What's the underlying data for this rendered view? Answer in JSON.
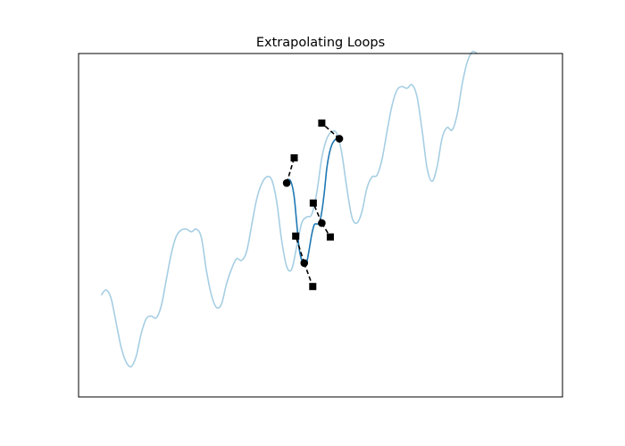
{
  "chart_data": {
    "type": "line",
    "title": "Extrapolating Loops",
    "xlabel": "",
    "ylabel": "",
    "xlim": [
      -0.55,
      9.1
    ],
    "ylim": [
      -0.35,
      3.6
    ],
    "grid": false,
    "axis_ticks": false,
    "background_curve": {
      "color": "#a6cee3",
      "points": [
        [
          -0.1,
          0.82
        ],
        [
          0.0,
          0.88
        ],
        [
          0.1,
          0.78
        ],
        [
          0.2,
          0.5
        ],
        [
          0.3,
          0.22
        ],
        [
          0.4,
          0.05
        ],
        [
          0.5,
          0.0
        ],
        [
          0.6,
          0.12
        ],
        [
          0.7,
          0.38
        ],
        [
          0.8,
          0.55
        ],
        [
          0.9,
          0.58
        ],
        [
          1.0,
          0.56
        ],
        [
          1.1,
          0.7
        ],
        [
          1.2,
          1.0
        ],
        [
          1.3,
          1.3
        ],
        [
          1.4,
          1.5
        ],
        [
          1.5,
          1.57
        ],
        [
          1.6,
          1.58
        ],
        [
          1.7,
          1.55
        ],
        [
          1.8,
          1.58
        ],
        [
          1.9,
          1.48
        ],
        [
          2.0,
          1.1
        ],
        [
          2.1,
          0.82
        ],
        [
          2.2,
          0.68
        ],
        [
          2.3,
          0.72
        ],
        [
          2.4,
          0.95
        ],
        [
          2.5,
          1.12
        ],
        [
          2.6,
          1.24
        ],
        [
          2.7,
          1.22
        ],
        [
          2.8,
          1.32
        ],
        [
          2.9,
          1.62
        ],
        [
          3.0,
          1.92
        ],
        [
          3.1,
          2.1
        ],
        [
          3.2,
          2.18
        ],
        [
          3.3,
          2.15
        ],
        [
          3.4,
          1.9
        ],
        [
          3.5,
          1.45
        ],
        [
          3.6,
          1.15
        ],
        [
          3.7,
          1.12
        ],
        [
          3.8,
          1.38
        ],
        [
          3.9,
          1.65
        ],
        [
          4.0,
          1.72
        ],
        [
          4.1,
          1.75
        ],
        [
          4.2,
          2.0
        ],
        [
          4.3,
          2.4
        ],
        [
          4.4,
          2.62
        ],
        [
          4.5,
          2.7
        ],
        [
          4.6,
          2.68
        ],
        [
          4.7,
          2.45
        ],
        [
          4.8,
          2.05
        ],
        [
          4.9,
          1.72
        ],
        [
          5.0,
          1.65
        ],
        [
          5.1,
          1.78
        ],
        [
          5.2,
          2.05
        ],
        [
          5.3,
          2.18
        ],
        [
          5.4,
          2.2
        ],
        [
          5.5,
          2.38
        ],
        [
          5.6,
          2.7
        ],
        [
          5.7,
          3.0
        ],
        [
          5.8,
          3.18
        ],
        [
          5.9,
          3.22
        ],
        [
          6.0,
          3.2
        ],
        [
          6.1,
          3.24
        ],
        [
          6.2,
          3.1
        ],
        [
          6.3,
          2.72
        ],
        [
          6.4,
          2.28
        ],
        [
          6.5,
          2.13
        ],
        [
          6.6,
          2.3
        ],
        [
          6.7,
          2.63
        ],
        [
          6.8,
          2.75
        ],
        [
          6.9,
          2.72
        ],
        [
          7.0,
          2.9
        ],
        [
          7.1,
          3.25
        ],
        [
          7.2,
          3.5
        ],
        [
          7.3,
          3.62
        ],
        [
          7.4,
          3.6
        ]
      ]
    },
    "highlight_curve": {
      "color": "#1f78b4",
      "points": [
        [
          3.6,
          2.11
        ],
        [
          3.65,
          2.15
        ],
        [
          3.7,
          2.1
        ],
        [
          3.75,
          1.95
        ],
        [
          3.8,
          1.65
        ],
        [
          3.85,
          1.35
        ],
        [
          3.9,
          1.22
        ],
        [
          3.95,
          1.15
        ],
        [
          4.0,
          1.2
        ],
        [
          4.05,
          1.35
        ],
        [
          4.1,
          1.52
        ],
        [
          4.15,
          1.63
        ],
        [
          4.2,
          1.64
        ],
        [
          4.25,
          1.65
        ],
        [
          4.3,
          1.78
        ],
        [
          4.35,
          2.0
        ],
        [
          4.4,
          2.28
        ],
        [
          4.45,
          2.45
        ],
        [
          4.5,
          2.55
        ],
        [
          4.55,
          2.6
        ],
        [
          4.6,
          2.62
        ],
        [
          4.65,
          2.62
        ]
      ]
    },
    "loop_points": [
      [
        3.6,
        2.11
      ],
      [
        3.95,
        1.19
      ],
      [
        4.3,
        1.65
      ],
      [
        4.65,
        2.62
      ]
    ],
    "extrapolation_segments": [
      {
        "from": [
          3.6,
          2.11
        ],
        "to": [
          3.75,
          2.4
        ]
      },
      {
        "from": [
          3.95,
          1.19
        ],
        "to": [
          3.78,
          1.5
        ]
      },
      {
        "from": [
          3.95,
          1.19
        ],
        "to": [
          4.12,
          0.92
        ]
      },
      {
        "from": [
          4.3,
          1.65
        ],
        "to": [
          4.13,
          1.88
        ]
      },
      {
        "from": [
          4.3,
          1.65
        ],
        "to": [
          4.47,
          1.49
        ]
      },
      {
        "from": [
          4.65,
          2.62
        ],
        "to": [
          4.3,
          2.8
        ]
      }
    ]
  }
}
